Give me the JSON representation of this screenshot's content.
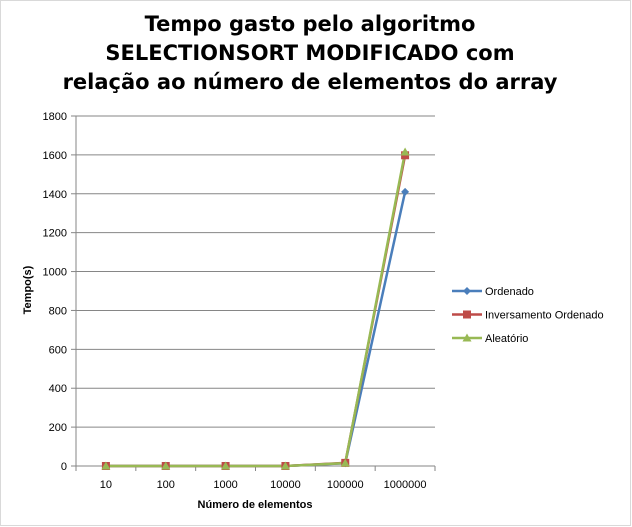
{
  "chart_data": {
    "type": "line",
    "title": "Tempo gasto pelo algoritmo SELECTIONSORT MODIFICADO com relação ao número de elementos do array",
    "xlabel": "Número de elementos",
    "ylabel": "Tempo(s)",
    "categories": [
      "10",
      "100",
      "1000",
      "10000",
      "100000",
      "1000000"
    ],
    "ylim": [
      0,
      1800
    ],
    "yticks": [
      0,
      200,
      400,
      600,
      800,
      1000,
      1200,
      1400,
      1600,
      1800
    ],
    "grid": true,
    "legend": "right",
    "series": [
      {
        "name": "Ordenado",
        "color": "#4a7ebb",
        "marker": "diamond",
        "values": [
          0,
          0,
          0,
          0,
          14,
          1410
        ]
      },
      {
        "name": "Inversamento Ordenado",
        "color": "#be4b48",
        "marker": "square",
        "values": [
          0,
          0,
          0,
          0,
          16,
          1598
        ]
      },
      {
        "name": "Aleatório",
        "color": "#98b954",
        "marker": "triangle",
        "values": [
          0,
          0,
          0,
          0,
          15,
          1615
        ]
      }
    ]
  }
}
